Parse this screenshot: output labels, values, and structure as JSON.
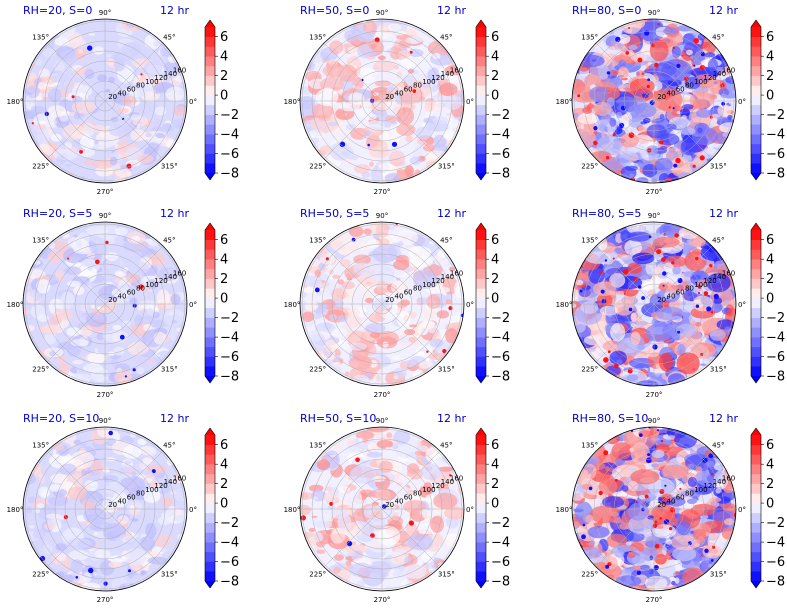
{
  "chart_data": [
    {
      "type": "heatmap",
      "projection": "polar",
      "title_left": "RH=20, S=0",
      "title_right": "12 hr",
      "rh": 20,
      "s": 0
    },
    {
      "type": "heatmap",
      "projection": "polar",
      "title_left": "RH=50, S=0",
      "title_right": "12 hr",
      "rh": 50,
      "s": 0
    },
    {
      "type": "heatmap",
      "projection": "polar",
      "title_left": "RH=80, S=0",
      "title_right": "12 hr",
      "rh": 80,
      "s": 0
    },
    {
      "type": "heatmap",
      "projection": "polar",
      "title_left": "RH=20, S=5",
      "title_right": "12 hr",
      "rh": 20,
      "s": 5
    },
    {
      "type": "heatmap",
      "projection": "polar",
      "title_left": "RH=50, S=5",
      "title_right": "12 hr",
      "rh": 50,
      "s": 5
    },
    {
      "type": "heatmap",
      "projection": "polar",
      "title_left": "RH=80, S=5",
      "title_right": "12 hr",
      "rh": 80,
      "s": 5
    },
    {
      "type": "heatmap",
      "projection": "polar",
      "title_left": "RH=20, S=10",
      "title_right": "12 hr",
      "rh": 20,
      "s": 10
    },
    {
      "type": "heatmap",
      "projection": "polar",
      "title_left": "RH=50, S=10",
      "title_right": "12 hr",
      "rh": 50,
      "s": 10
    },
    {
      "type": "heatmap",
      "projection": "polar",
      "title_left": "RH=80, S=10",
      "title_right": "12 hr",
      "rh": 80,
      "s": 10
    }
  ],
  "angular_ticks": [
    "0°",
    "45°",
    "90°",
    "135°",
    "180°",
    "225°",
    "270°",
    "315°"
  ],
  "radial_ticks": [
    "20",
    "40",
    "60",
    "80",
    "100",
    "120",
    "140",
    "160"
  ],
  "colorbar": {
    "range": [
      -8,
      7
    ],
    "tick_labels": [
      "6",
      "4",
      "2",
      "0",
      "−2",
      "−4",
      "−6",
      "−8"
    ],
    "colors": {
      "low": "#0000ff",
      "mid": "#ffffff",
      "high": "#ff0000"
    }
  }
}
